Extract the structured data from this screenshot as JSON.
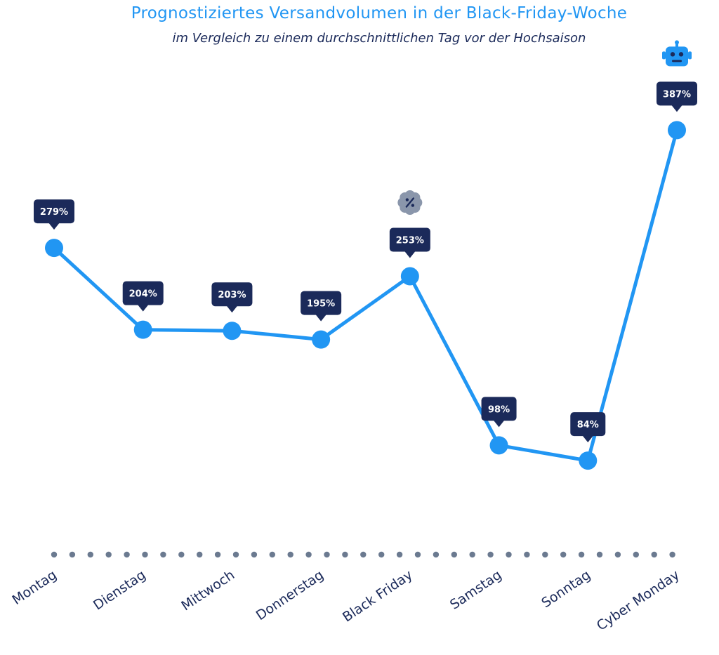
{
  "chart_data": {
    "type": "line",
    "title": "Prognostiziertes Versandvolumen in der Black-Friday-Woche",
    "subtitle": "im Vergleich zu einem durchschnittlichen Tag vor der Hochsaison",
    "xlabel": "",
    "ylabel": "",
    "categories": [
      "Montag",
      "Dienstag",
      "Mittwoch",
      "Donnerstag",
      "Black Friday",
      "Samstag",
      "Sonntag",
      "Cyber Monday"
    ],
    "values": [
      279,
      204,
      203,
      195,
      253,
      98,
      84,
      387
    ],
    "labels": [
      "279%",
      "204%",
      "203%",
      "195%",
      "253%",
      "98%",
      "84%",
      "387%"
    ],
    "ylim": [
      30,
      440
    ],
    "grid": false,
    "legend": "none"
  },
  "annotations": [
    {
      "category": "Black Friday",
      "icon": "percent-badge-icon"
    },
    {
      "category": "Cyber Monday",
      "icon": "robot-icon"
    }
  ],
  "colors": {
    "title": "#2196f3",
    "line": "#2196f3",
    "point": "#2196f3",
    "label_bg": "#1b2a5a",
    "text_dark": "#1b2a5a",
    "dots": "#6b7a90",
    "badge": "#8a96ab"
  }
}
